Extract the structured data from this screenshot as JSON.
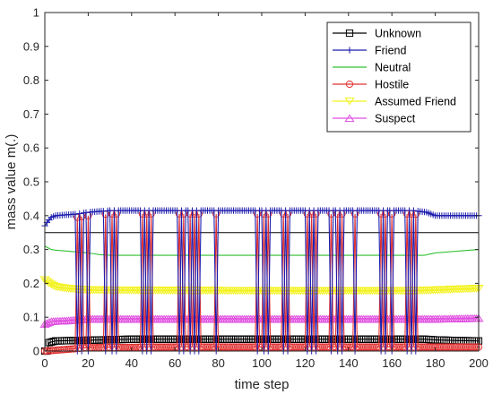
{
  "chart_data": {
    "type": "line",
    "title": "",
    "xlabel": "time step",
    "ylabel": "mass value m(.)",
    "xlim": [
      0,
      200
    ],
    "ylim": [
      0,
      1
    ],
    "xticks": [
      "0",
      "20",
      "40",
      "60",
      "80",
      "100",
      "120",
      "140",
      "160",
      "180",
      "200"
    ],
    "yticks": [
      "0",
      "0.1",
      "0.2",
      "0.3",
      "0.4",
      "0.5",
      "0.6",
      "0.7",
      "0.8",
      "0.9",
      "1"
    ],
    "grid": false,
    "legend_position": "top-right",
    "spike_steps": [
      15,
      17,
      20,
      28,
      31,
      33,
      45,
      47,
      49,
      62,
      64,
      67,
      69,
      71,
      79,
      98,
      101,
      103,
      110,
      112,
      121,
      123,
      125,
      132,
      135,
      137,
      143,
      155,
      157,
      160,
      167,
      169,
      171
    ],
    "series": [
      {
        "name": "Unknown",
        "color": "#000000",
        "marker": "square",
        "key": [
          [
            0,
            0.0
          ],
          [
            1,
            0.0
          ],
          [
            2,
            0.025
          ],
          [
            5,
            0.03
          ],
          [
            20,
            0.032
          ],
          [
            40,
            0.035
          ],
          [
            60,
            0.035
          ],
          [
            80,
            0.035
          ],
          [
            100,
            0.035
          ],
          [
            120,
            0.035
          ],
          [
            140,
            0.035
          ],
          [
            160,
            0.035
          ],
          [
            175,
            0.035
          ],
          [
            180,
            0.033
          ],
          [
            190,
            0.031
          ],
          [
            200,
            0.03
          ]
        ]
      },
      {
        "name": "Friend",
        "color": "#1c1cae",
        "marker": "plus",
        "key": [
          [
            0,
            0.37
          ],
          [
            1,
            0.38
          ],
          [
            3,
            0.395
          ],
          [
            5,
            0.4
          ],
          [
            15,
            0.405
          ],
          [
            20,
            0.41
          ],
          [
            30,
            0.415
          ],
          [
            60,
            0.415
          ],
          [
            100,
            0.415
          ],
          [
            140,
            0.415
          ],
          [
            170,
            0.415
          ],
          [
            176,
            0.41
          ],
          [
            180,
            0.4
          ],
          [
            188,
            0.4
          ],
          [
            200,
            0.4
          ]
        ]
      },
      {
        "name": "Neutral",
        "color": "#2fc12f",
        "marker": "none",
        "key": [
          [
            0,
            0.31
          ],
          [
            3,
            0.3
          ],
          [
            5,
            0.298
          ],
          [
            20,
            0.29
          ],
          [
            25,
            0.285
          ],
          [
            30,
            0.283
          ],
          [
            100,
            0.283
          ],
          [
            170,
            0.283
          ],
          [
            175,
            0.283
          ],
          [
            180,
            0.29
          ],
          [
            190,
            0.295
          ],
          [
            200,
            0.3
          ]
        ]
      },
      {
        "name": "Hostile",
        "color": "#e03030",
        "marker": "circle",
        "key": [
          [
            0,
            0.0
          ],
          [
            10,
            0.005
          ],
          [
            20,
            0.01
          ],
          [
            60,
            0.012
          ],
          [
            100,
            0.012
          ],
          [
            140,
            0.012
          ],
          [
            170,
            0.012
          ],
          [
            180,
            0.012
          ],
          [
            200,
            0.012
          ]
        ]
      },
      {
        "name": "Assumed Friend",
        "color": "#f2f21a",
        "marker": "triangle-down",
        "key": [
          [
            0,
            0.21
          ],
          [
            2,
            0.2
          ],
          [
            5,
            0.19
          ],
          [
            10,
            0.185
          ],
          [
            20,
            0.18
          ],
          [
            100,
            0.178
          ],
          [
            170,
            0.178
          ],
          [
            180,
            0.18
          ],
          [
            200,
            0.185
          ]
        ]
      },
      {
        "name": "Suspect",
        "color": "#e04ee0",
        "marker": "triangle-up",
        "key": [
          [
            0,
            0.08
          ],
          [
            3,
            0.088
          ],
          [
            10,
            0.09
          ],
          [
            20,
            0.095
          ],
          [
            100,
            0.095
          ],
          [
            170,
            0.095
          ],
          [
            180,
            0.095
          ],
          [
            200,
            0.097
          ]
        ]
      }
    ],
    "reference_line": {
      "name": "",
      "color": "#000000",
      "value": 0.35
    }
  }
}
